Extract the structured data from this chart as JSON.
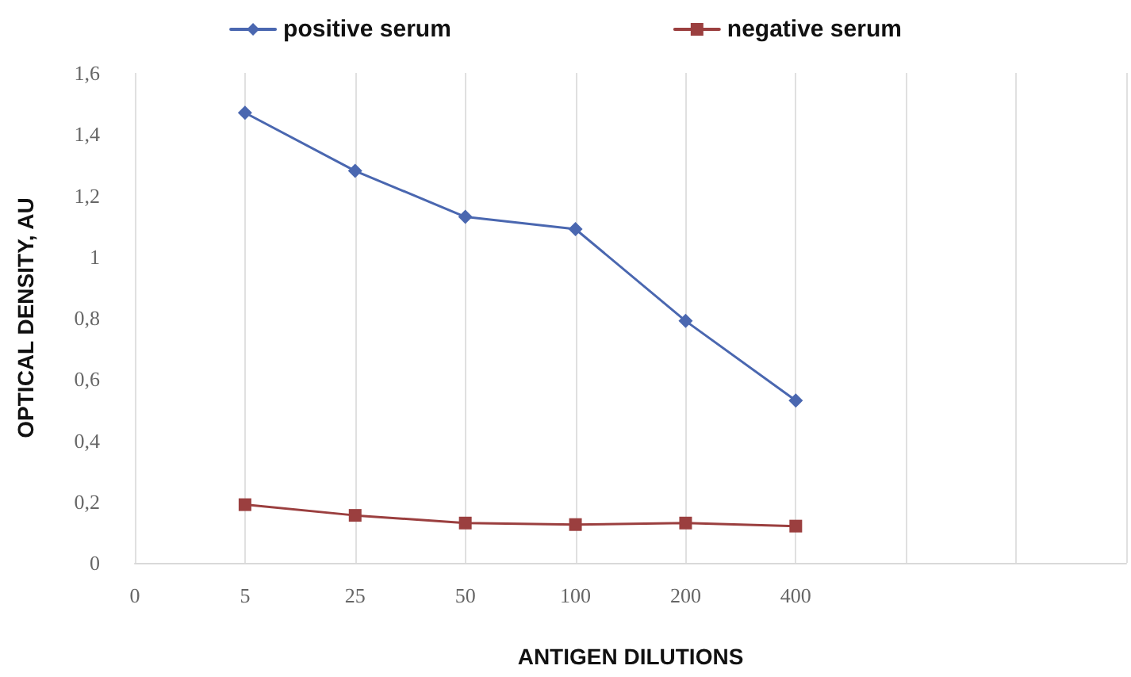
{
  "chart_data": {
    "type": "line",
    "xlabel": "ANTIGEN DILUTIONS",
    "ylabel": "OPTICAL DENSITY, AU",
    "categories": [
      "0",
      "5",
      "25",
      "50",
      "100",
      "200",
      "400",
      null,
      null,
      null
    ],
    "series": [
      {
        "name": "positive serum",
        "color": "#4a67b0",
        "marker": "diamond",
        "values": [
          null,
          1.47,
          1.28,
          1.13,
          1.09,
          0.79,
          0.53,
          null,
          null,
          null
        ]
      },
      {
        "name": "negative serum",
        "color": "#9b3f3f",
        "marker": "square",
        "values": [
          null,
          0.19,
          0.155,
          0.13,
          0.125,
          0.13,
          0.12,
          null,
          null,
          null
        ]
      }
    ],
    "ylim": [
      0,
      1.6
    ],
    "yticks": [
      0,
      {
        "value": 0.2,
        "label": "0,2"
      },
      {
        "value": 0.4,
        "label": "0,4"
      },
      {
        "value": 0.6,
        "label": "0,6"
      },
      {
        "value": 0.8,
        "label": "0,8"
      },
      1,
      {
        "value": 1.2,
        "label": "1,2"
      },
      {
        "value": 1.4,
        "label": "1,4"
      },
      {
        "value": 1.6,
        "label": "1,6"
      }
    ],
    "grid": "x",
    "legend": "top",
    "line_style": "solid"
  }
}
